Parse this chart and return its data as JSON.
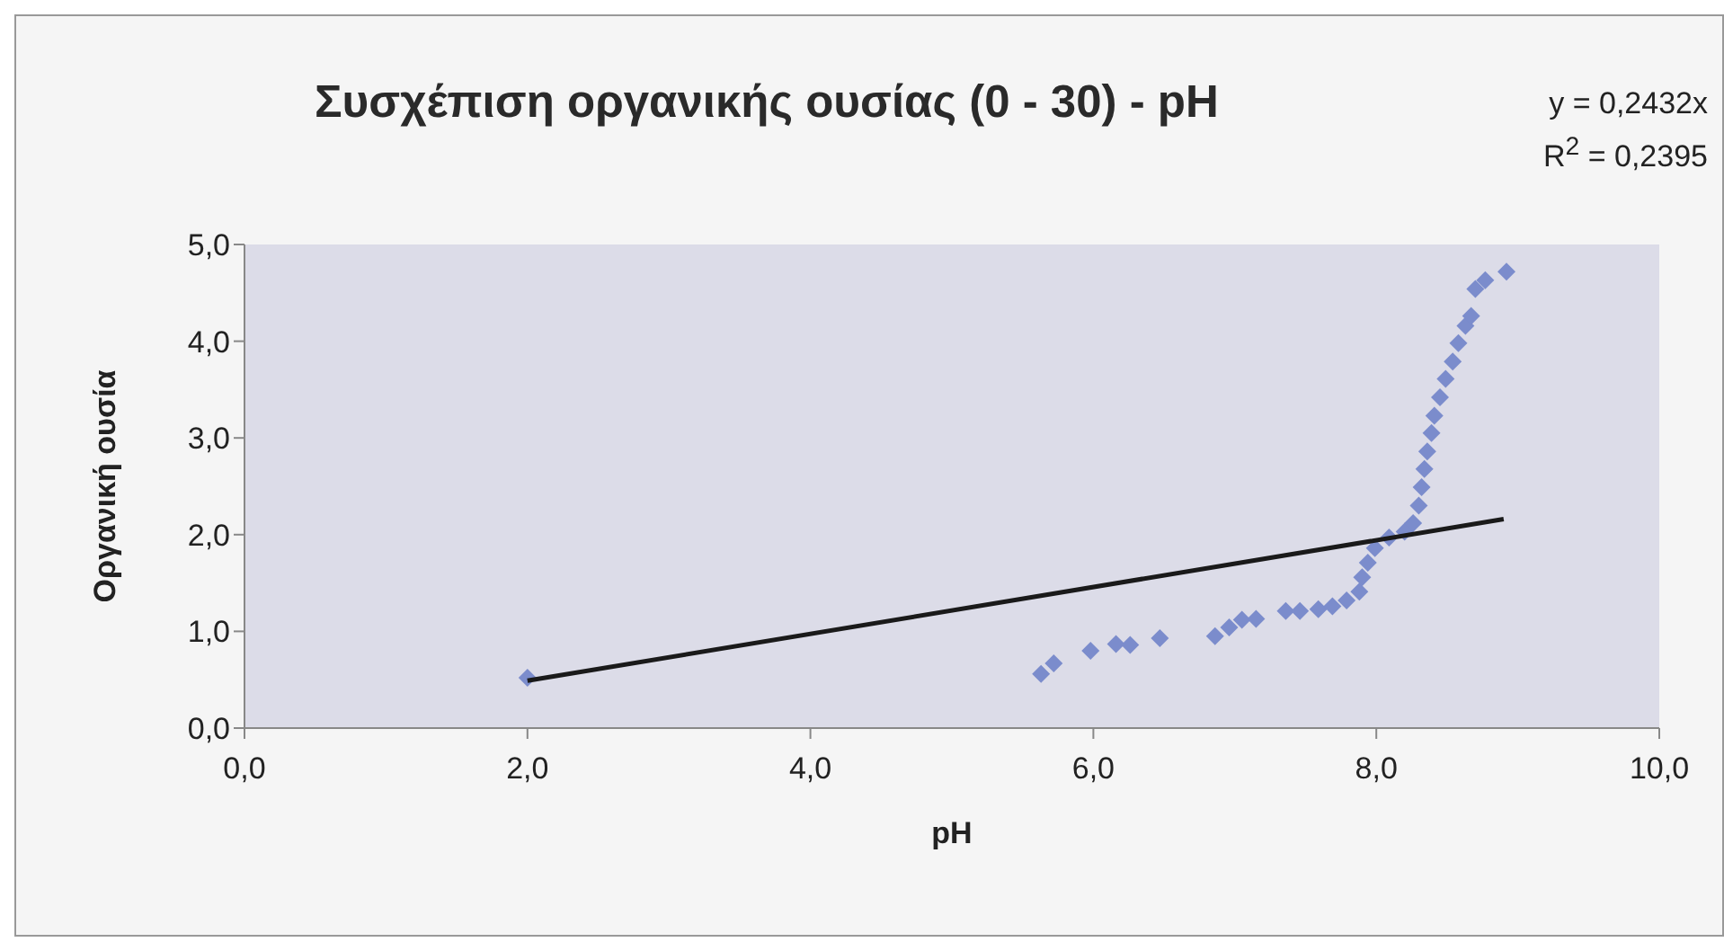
{
  "chart_data": {
    "type": "scatter",
    "title": "Συσχέπιση οργανικής ουσίας (0 - 30) - pH",
    "xlabel": "pH",
    "ylabel": "Οργανική ουσία",
    "annotations": [
      "y = 0,2432x",
      "R$^{2}$ = 0,2395"
    ],
    "xlim": [
      0,
      10
    ],
    "xticks": [
      {
        "value": 0,
        "label": "0,0"
      },
      {
        "value": 2,
        "label": "2,0"
      },
      {
        "value": 4,
        "label": "4,0"
      },
      {
        "value": 6,
        "label": "6,0"
      },
      {
        "value": 8,
        "label": "8,0"
      },
      {
        "value": 10,
        "label": "10,0"
      }
    ],
    "ylim": [
      0,
      5
    ],
    "yticks": [
      {
        "value": 0,
        "label": "0,0"
      },
      {
        "value": 1,
        "label": "1,0"
      },
      {
        "value": 2,
        "label": "2,0"
      },
      {
        "value": 3,
        "label": "3,0"
      },
      {
        "value": 4,
        "label": "4,0"
      },
      {
        "value": 5,
        "label": "5,0"
      }
    ],
    "grid": false,
    "legend": false,
    "series": [
      {
        "type": "scatter",
        "marker": "diamond",
        "color": "#7b8ccc",
        "x": [
          2.0,
          5.63,
          5.72,
          5.98,
          6.16,
          6.26,
          6.47,
          6.86,
          6.96,
          7.05,
          7.15,
          7.36,
          7.46,
          7.59,
          7.69,
          7.79,
          7.88,
          7.9,
          7.94,
          7.99,
          8.09,
          8.2,
          8.26,
          8.3,
          8.32,
          8.34,
          8.36,
          8.39,
          8.41,
          8.45,
          8.49,
          8.54,
          8.58,
          8.63,
          8.67,
          8.7,
          8.77,
          8.92
        ],
        "values": [
          0.52,
          0.56,
          0.67,
          0.8,
          0.87,
          0.86,
          0.93,
          0.95,
          1.04,
          1.12,
          1.13,
          1.21,
          1.21,
          1.23,
          1.26,
          1.32,
          1.41,
          1.56,
          1.71,
          1.86,
          1.97,
          2.03,
          2.12,
          2.3,
          2.49,
          2.68,
          2.86,
          3.05,
          3.23,
          3.42,
          3.61,
          3.79,
          3.98,
          4.16,
          4.26,
          4.54,
          4.63,
          4.72
        ]
      },
      {
        "type": "line",
        "marker": "none",
        "color": "#1a1a1a",
        "x": [
          2.0,
          8.9
        ],
        "values": [
          0.49,
          2.16
        ]
      }
    ]
  }
}
